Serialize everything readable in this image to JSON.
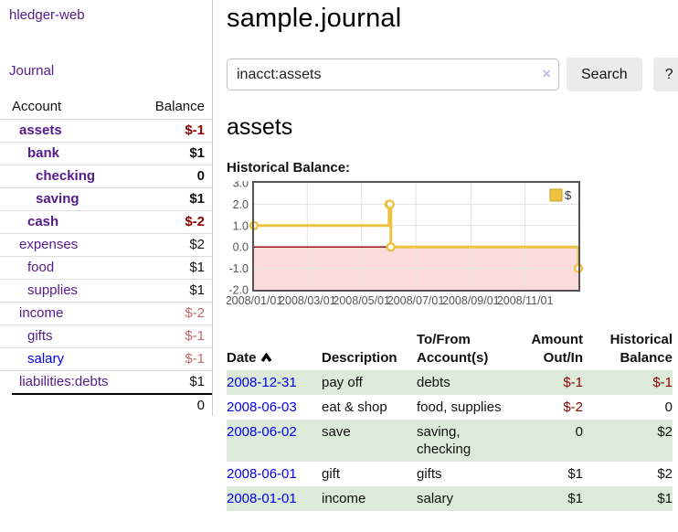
{
  "colors": {
    "link_purple": "#551A8B",
    "link_blue": "#0000EE",
    "negative_strong": "#8b0000",
    "negative_soft": "#bf6a6a",
    "row_stripe_green": "#dcebd9",
    "series_gold": "#EDC240",
    "negative_region_pink": "#fbdbdb",
    "chart_border": "#545454"
  },
  "sidebar": {
    "app_title": "hledger-web",
    "nav_journal": "Journal",
    "accounts_table": {
      "headers": {
        "account": "Account",
        "balance": "Balance"
      },
      "rows": [
        {
          "name": "assets",
          "depth": 1,
          "bold": true,
          "balance": "$-1",
          "bal_class": "neg-strong"
        },
        {
          "name": "bank",
          "depth": 2,
          "bold": true,
          "balance": "$1"
        },
        {
          "name": "checking",
          "depth": 3,
          "bold": true,
          "balance": "0"
        },
        {
          "name": "saving",
          "depth": 3,
          "bold": true,
          "balance": "$1"
        },
        {
          "name": "cash",
          "depth": 2,
          "bold": true,
          "balance": "$-2",
          "bal_class": "neg-strong"
        },
        {
          "name": "expenses",
          "depth": 1,
          "bold": false,
          "balance": "$2"
        },
        {
          "name": "food",
          "depth": 2,
          "bold": false,
          "balance": "$1"
        },
        {
          "name": "supplies",
          "depth": 2,
          "bold": false,
          "balance": "$1"
        },
        {
          "name": "income",
          "depth": 1,
          "bold": false,
          "balance": "$-2",
          "bal_class": "neg-soft"
        },
        {
          "name": "gifts",
          "depth": 2,
          "bold": false,
          "balance": "$-1",
          "bal_class": "neg-soft"
        },
        {
          "name": "salary",
          "depth": 2,
          "bold": false,
          "balance": "$-1",
          "bal_class": "neg-soft",
          "link_class": "blue"
        },
        {
          "name": "liabilities:debts",
          "depth": 1,
          "bold": false,
          "balance": "$1"
        }
      ],
      "total": "0"
    }
  },
  "header": {
    "title": "sample.journal"
  },
  "search": {
    "value": "inacct:assets",
    "clear_icon": "×",
    "search_button": "Search",
    "help_button": "?"
  },
  "account_view": {
    "heading": "assets"
  },
  "chart_data": {
    "type": "line",
    "title": "Historical Balance:",
    "step": true,
    "grid": true,
    "legend": {
      "label": "$",
      "position": "top-right"
    },
    "xlim": [
      "2008-01-01",
      "2008-12-31"
    ],
    "ylim": [
      -2,
      3
    ],
    "y_ticks": [
      "3.0",
      "2.0",
      "1.0",
      "0.0",
      "-1.0",
      "-2.0"
    ],
    "x_ticks": [
      {
        "label": "2008/01/01",
        "date": "2008-01-01"
      },
      {
        "label": "2008/03/01",
        "date": "2008-03-01"
      },
      {
        "label": "2008/05/01",
        "date": "2008-05-01"
      },
      {
        "label": "2008/07/01",
        "date": "2008-07-01"
      },
      {
        "label": "2008/09/01",
        "date": "2008-09-01"
      },
      {
        "label": "2008/11/01",
        "date": "2008-11-01"
      }
    ],
    "series": [
      {
        "name": "$",
        "color": "#EDC240",
        "marker": "circle",
        "points": [
          [
            "2008-01-01",
            1
          ],
          [
            "2008-06-01",
            2
          ],
          [
            "2008-06-02",
            2
          ],
          [
            "2008-06-03",
            0
          ],
          [
            "2008-12-31",
            -1
          ]
        ]
      }
    ],
    "zero_line_color": "#8b0000",
    "negative_region_fill": "#fbdbdb"
  },
  "register": {
    "headers": {
      "date": "Date",
      "description": "Description",
      "tofrom": "To/From\nAccount(s)",
      "amount": "Amount\nOut/In",
      "balance": "Historical\nBalance"
    },
    "rows": [
      {
        "date": "2008-12-31",
        "description": "pay off",
        "accounts": "debts",
        "amount": "$-1",
        "amount_neg": true,
        "balance": "$-1",
        "balance_neg": true,
        "shaded": true
      },
      {
        "date": "2008-06-03",
        "description": "eat & shop",
        "accounts": "food, supplies",
        "amount": "$-2",
        "amount_neg": true,
        "balance": "0",
        "balance_neg": false,
        "shaded": false
      },
      {
        "date": "2008-06-02",
        "description": "save",
        "accounts": "saving, checking",
        "amount": "0",
        "amount_neg": false,
        "balance": "$2",
        "balance_neg": false,
        "shaded": true
      },
      {
        "date": "2008-06-01",
        "description": "gift",
        "accounts": "gifts",
        "amount": "$1",
        "amount_neg": false,
        "balance": "$2",
        "balance_neg": false,
        "shaded": false
      },
      {
        "date": "2008-01-01",
        "description": "income",
        "accounts": "salary",
        "amount": "$1",
        "amount_neg": false,
        "balance": "$1",
        "balance_neg": false,
        "shaded": true
      }
    ]
  }
}
